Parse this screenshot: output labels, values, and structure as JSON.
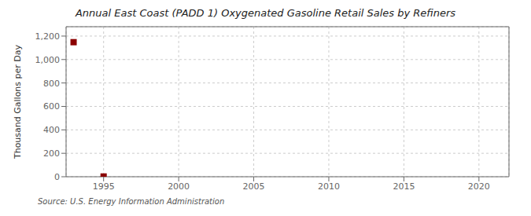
{
  "chart_data": {
    "type": "scatter",
    "title": "Annual East Coast (PADD 1) Oxygenated Gasoline Retail Sales by Refiners",
    "ylabel": "Thousand Gallons per Day",
    "annotations": [
      "Source: U.S. Energy Information Administration"
    ],
    "x": [
      1993,
      1995
    ],
    "values": [
      1148,
      2
    ],
    "color": "#8b0000",
    "marker": "square",
    "xlim": [
      1992.5,
      2022
    ],
    "ylim": [
      0,
      1280
    ],
    "xticks": [
      1995,
      2000,
      2005,
      2010,
      2015,
      2020
    ],
    "yticks": [
      0,
      200,
      400,
      600,
      800,
      {
        "value": 1000,
        "label": "1,000"
      },
      {
        "value": 1200,
        "label": "1,200"
      }
    ],
    "grid": true
  }
}
